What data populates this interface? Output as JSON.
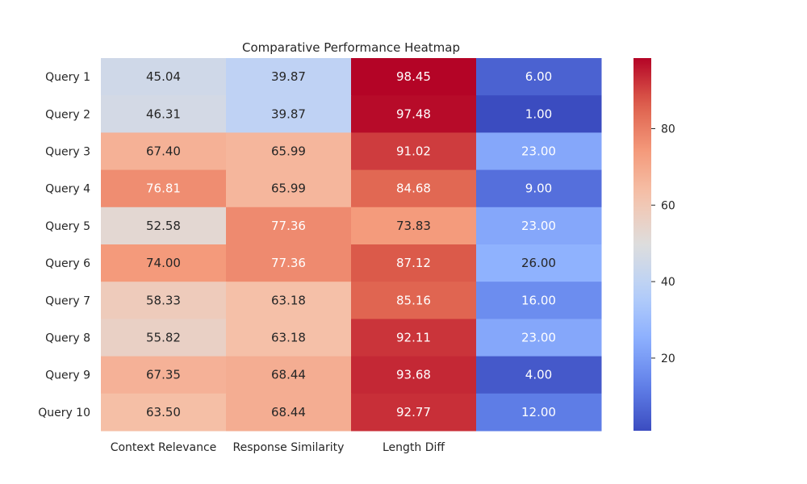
{
  "chart_data": {
    "type": "heatmap",
    "title": "Comparative Performance Heatmap",
    "rows": [
      "Query 1",
      "Query 2",
      "Query 3",
      "Query 4",
      "Query 5",
      "Query 6",
      "Query 7",
      "Query 8",
      "Query 9",
      "Query 10"
    ],
    "columns": [
      "Context Relevance",
      "Response Similarity",
      "Length Diff",
      ""
    ],
    "values": [
      [
        45.04,
        39.87,
        98.45,
        6.0
      ],
      [
        46.31,
        39.87,
        97.48,
        1.0
      ],
      [
        67.4,
        65.99,
        91.02,
        23.0
      ],
      [
        76.81,
        65.99,
        84.68,
        9.0
      ],
      [
        52.58,
        77.36,
        73.83,
        23.0
      ],
      [
        74.0,
        77.36,
        87.12,
        26.0
      ],
      [
        58.33,
        63.18,
        85.16,
        16.0
      ],
      [
        55.82,
        63.18,
        92.11,
        23.0
      ],
      [
        67.35,
        68.44,
        93.68,
        4.0
      ],
      [
        63.5,
        68.44,
        92.77,
        12.0
      ]
    ],
    "value_format": "2 decimals",
    "colormap": "coolwarm",
    "colorbar": {
      "min": 1.0,
      "max": 98.45,
      "ticks": [
        20,
        40,
        60,
        80
      ]
    }
  }
}
